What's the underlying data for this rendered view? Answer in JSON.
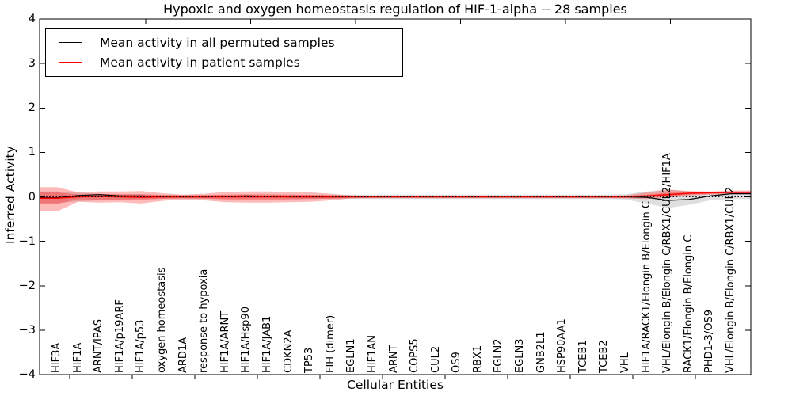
{
  "chart_data": {
    "type": "line",
    "title": "Hypoxic and oxygen homeostasis regulation of HIF-1-alpha -- 28 samples",
    "xlabel": "Cellular Entities",
    "ylabel": "Inferred Activity",
    "ylim": [
      -4,
      4
    ],
    "yticks": [
      "4",
      "3",
      "2",
      "1",
      "0",
      "−1",
      "−2",
      "−3",
      "−4"
    ],
    "ytick_values": [
      4,
      3,
      2,
      1,
      0,
      -1,
      -2,
      -3,
      -4
    ],
    "grid": false,
    "zero_line_value": 0,
    "legend_position": "upper-left",
    "categories": [
      "HIF3A",
      "HIF1A",
      "ARNT/IPAS",
      "HIF1A/p19ARF",
      "HIF1A/p53",
      "oxygen homeostasis",
      "ARD1A",
      "response to hypoxia",
      "HIF1A/ARNT",
      "HIF1A/Hsp90",
      "HIF1A/JAB1",
      "CDKN2A",
      "TP53",
      "FIH (dimer)",
      "EGLN1",
      "HIF1AN",
      "ARNT",
      "COPS5",
      "CUL2",
      "OS9",
      "RBX1",
      "EGLN2",
      "EGLN3",
      "GNB2L1",
      "HSP90AA1",
      "TCEB1",
      "TCEB2",
      "VHL",
      "HIF1A/RACK1/Elongin B/Elongin C",
      "VHL/Elongin B/Elongin C/RBX1/CUL2/HIF1A",
      "RACK1/Elongin B/Elongin C",
      "PHD1-3/OS9",
      "VHL/Elongin B/Elongin C/RBX1/CUL2"
    ],
    "series": [
      {
        "name": "Mean activity in all permuted samples",
        "color": "#000000",
        "values": [
          -0.02,
          0.03,
          0.05,
          0.02,
          0.02,
          0.0,
          0.0,
          0.0,
          0.01,
          0.02,
          0.01,
          0.0,
          0.0,
          0.0,
          0.0,
          0.0,
          0.0,
          0.0,
          0.0,
          0.0,
          0.0,
          0.0,
          0.0,
          0.0,
          0.0,
          0.0,
          0.0,
          0.0,
          -0.01,
          -0.08,
          -0.06,
          0.02,
          0.07
        ]
      },
      {
        "name": "Mean activity in patient samples",
        "color": "#ff0000",
        "values": [
          -0.03,
          0.0,
          0.01,
          0.0,
          -0.01,
          0.0,
          0.0,
          0.0,
          0.0,
          0.0,
          0.0,
          0.0,
          0.0,
          0.0,
          0.0,
          0.0,
          0.0,
          0.0,
          0.0,
          0.0,
          0.0,
          0.0,
          0.0,
          0.0,
          0.0,
          0.0,
          0.0,
          0.0,
          0.02,
          0.05,
          0.08,
          0.09,
          0.1
        ]
      }
    ],
    "bands": [
      {
        "name": "permuted-samples-spread",
        "color": "#808080",
        "opacity": 0.25,
        "upper": [
          0.12,
          0.09,
          0.07,
          0.05,
          0.05,
          0.04,
          0.04,
          0.04,
          0.04,
          0.04,
          0.04,
          0.04,
          0.04,
          0.04,
          0.05,
          0.05,
          0.05,
          0.05,
          0.05,
          0.05,
          0.05,
          0.05,
          0.05,
          0.05,
          0.05,
          0.05,
          0.05,
          0.06,
          0.12,
          0.17,
          0.12,
          0.1,
          0.12
        ],
        "lower": [
          -0.14,
          -0.1,
          -0.08,
          -0.06,
          -0.05,
          -0.04,
          -0.04,
          -0.04,
          -0.04,
          -0.04,
          -0.04,
          -0.04,
          -0.04,
          -0.04,
          -0.05,
          -0.05,
          -0.05,
          -0.05,
          -0.05,
          -0.05,
          -0.05,
          -0.05,
          -0.05,
          -0.05,
          -0.05,
          -0.05,
          -0.05,
          -0.06,
          -0.15,
          -0.25,
          -0.18,
          -0.08,
          -0.05
        ]
      },
      {
        "name": "patient-samples-spread-outer",
        "color": "#ff0000",
        "opacity": 0.27,
        "upper": [
          0.22,
          0.1,
          0.12,
          0.12,
          0.13,
          0.08,
          0.05,
          0.07,
          0.11,
          0.12,
          0.12,
          0.11,
          0.1,
          0.07,
          0.03,
          0.025,
          0.025,
          0.025,
          0.025,
          0.025,
          0.025,
          0.025,
          0.025,
          0.025,
          0.025,
          0.025,
          0.025,
          0.03,
          0.1,
          0.16,
          0.13,
          0.12,
          0.14
        ],
        "lower": [
          -0.33,
          -0.11,
          -0.13,
          -0.12,
          -0.15,
          -0.09,
          -0.06,
          -0.08,
          -0.12,
          -0.13,
          -0.13,
          -0.12,
          -0.11,
          -0.08,
          -0.035,
          -0.03,
          -0.03,
          -0.03,
          -0.03,
          -0.03,
          -0.03,
          -0.03,
          -0.03,
          -0.03,
          -0.03,
          -0.03,
          -0.03,
          -0.035,
          -0.05,
          -0.02,
          0.03,
          0.05,
          0.06
        ]
      },
      {
        "name": "patient-samples-spread-inner",
        "color": "#ff0000",
        "opacity": 0.28,
        "upper": [
          0.1,
          0.05,
          0.06,
          0.06,
          0.06,
          0.04,
          0.03,
          0.035,
          0.05,
          0.055,
          0.055,
          0.05,
          0.045,
          0.035,
          0.02,
          0.015,
          0.015,
          0.015,
          0.015,
          0.015,
          0.015,
          0.015,
          0.015,
          0.015,
          0.015,
          0.015,
          0.015,
          0.02,
          0.05,
          0.09,
          0.1,
          0.1,
          0.12
        ],
        "lower": [
          -0.16,
          -0.055,
          -0.065,
          -0.06,
          -0.07,
          -0.045,
          -0.03,
          -0.04,
          -0.06,
          -0.065,
          -0.065,
          -0.06,
          -0.05,
          -0.04,
          -0.02,
          -0.015,
          -0.015,
          -0.015,
          -0.015,
          -0.015,
          -0.015,
          -0.015,
          -0.015,
          -0.015,
          -0.015,
          -0.015,
          -0.015,
          -0.02,
          -0.015,
          0.01,
          0.05,
          0.07,
          0.08
        ]
      }
    ]
  }
}
